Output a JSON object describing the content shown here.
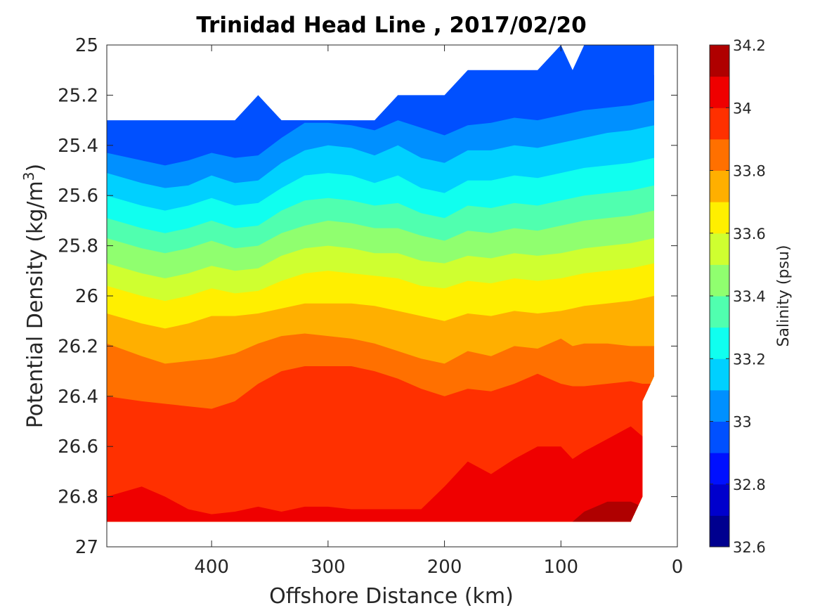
{
  "chart_data": {
    "type": "heatmap",
    "subtype": "filled-contour",
    "title": "Trinidad Head Line , 2017/02/20",
    "xlabel": "Offshore Distance (km)",
    "ylabel_main": "Potential Density (kg/m",
    "ylabel_sup": "3",
    "ylabel_close": ")",
    "xlim": [
      490,
      0
    ],
    "x_reversed": true,
    "ylim": [
      25,
      27
    ],
    "y_reversed": true,
    "xticks": [
      "400",
      "300",
      "200",
      "100",
      "0"
    ],
    "yticks": [
      "25",
      "25.2",
      "25.4",
      "25.6",
      "25.8",
      "26",
      "26.2",
      "26.4",
      "26.6",
      "26.8",
      "27"
    ],
    "grid": false,
    "colorbar": {
      "label": "Salinity (psu)",
      "range": [
        32.6,
        34.2
      ],
      "tick_labels": [
        "32.6",
        "32.8",
        "33",
        "33.2",
        "33.4",
        "33.6",
        "33.8",
        "34",
        "34.2"
      ],
      "levels": [
        32.6,
        32.7,
        32.8,
        32.9,
        33.0,
        33.1,
        33.2,
        33.3,
        33.4,
        33.5,
        33.6,
        33.7,
        33.8,
        33.9,
        34.0,
        34.1,
        34.2
      ],
      "colors": [
        "#00008f",
        "#0000cc",
        "#0010ff",
        "#0050ff",
        "#0090ff",
        "#00d0ff",
        "#10ffef",
        "#50ffaf",
        "#90ff6f",
        "#cfff30",
        "#ffef00",
        "#ffaf00",
        "#ff7000",
        "#ff3000",
        "#ef0000",
        "#af0000"
      ]
    },
    "data_region": {
      "x": [
        490,
        480,
        460,
        440,
        420,
        400,
        380,
        360,
        340,
        320,
        300,
        280,
        260,
        240,
        220,
        200,
        180,
        160,
        140,
        120,
        100,
        90,
        80,
        60,
        40,
        30,
        20
      ],
      "top": [
        25.3,
        25.3,
        25.3,
        25.3,
        25.3,
        25.3,
        25.3,
        25.2,
        25.3,
        25.3,
        25.3,
        25.3,
        25.3,
        25.2,
        25.2,
        25.2,
        25.1,
        25.1,
        25.1,
        25.1,
        25.0,
        25.1,
        25.0,
        25.0,
        25.0,
        25.0,
        25.0
      ],
      "bottom": 26.9
    },
    "isolines": {
      "x": [
        490,
        460,
        440,
        420,
        400,
        380,
        360,
        340,
        320,
        300,
        280,
        260,
        240,
        220,
        200,
        180,
        160,
        140,
        120,
        100,
        90,
        80,
        60,
        40,
        30,
        20
      ],
      "levels": [
        {
          "salinity": 32.9,
          "y": [
            25.33,
            25.36,
            25.38,
            25.37,
            25.34,
            25.34,
            25.31,
            25.29,
            25.3,
            25.3,
            25.3,
            25.31,
            25.27,
            25.26,
            25.28,
            25.25,
            25.24,
            25.22,
            25.21,
            25.19,
            25.18,
            25.17,
            25.15,
            25.14,
            25.13,
            25.12
          ]
        },
        {
          "salinity": 33.0,
          "y": [
            25.43,
            25.46,
            25.48,
            25.46,
            25.43,
            25.45,
            25.44,
            25.37,
            25.31,
            25.31,
            25.32,
            25.34,
            25.3,
            25.33,
            25.36,
            25.32,
            25.31,
            25.29,
            25.3,
            25.28,
            25.27,
            25.26,
            25.25,
            25.24,
            25.23,
            25.22
          ]
        },
        {
          "salinity": 33.1,
          "y": [
            25.51,
            25.55,
            25.57,
            25.56,
            25.52,
            25.55,
            25.54,
            25.47,
            25.42,
            25.4,
            25.41,
            25.44,
            25.4,
            25.45,
            25.47,
            25.42,
            25.42,
            25.4,
            25.41,
            25.39,
            25.38,
            25.37,
            25.35,
            25.34,
            25.33,
            25.32
          ]
        },
        {
          "salinity": 33.2,
          "y": [
            25.6,
            25.64,
            25.66,
            25.64,
            25.61,
            25.64,
            25.63,
            25.57,
            25.52,
            25.51,
            25.52,
            25.55,
            25.52,
            25.57,
            25.59,
            25.54,
            25.54,
            25.52,
            25.53,
            25.51,
            25.5,
            25.49,
            25.48,
            25.47,
            25.46,
            25.45
          ]
        },
        {
          "salinity": 33.3,
          "y": [
            25.69,
            25.73,
            25.75,
            25.73,
            25.7,
            25.73,
            25.72,
            25.66,
            25.62,
            25.61,
            25.62,
            25.64,
            25.63,
            25.67,
            25.69,
            25.64,
            25.65,
            25.63,
            25.64,
            25.62,
            25.61,
            25.6,
            25.59,
            25.58,
            25.57,
            25.56
          ]
        },
        {
          "salinity": 33.4,
          "y": [
            25.77,
            25.81,
            25.83,
            25.81,
            25.78,
            25.81,
            25.8,
            25.75,
            25.72,
            25.7,
            25.71,
            25.73,
            25.73,
            25.76,
            25.78,
            25.74,
            25.75,
            25.73,
            25.74,
            25.72,
            25.71,
            25.7,
            25.69,
            25.68,
            25.67,
            25.66
          ]
        },
        {
          "salinity": 33.5,
          "y": [
            25.87,
            25.91,
            25.93,
            25.91,
            25.88,
            25.9,
            25.89,
            25.84,
            25.81,
            25.8,
            25.81,
            25.83,
            25.83,
            25.86,
            25.87,
            25.84,
            25.85,
            25.83,
            25.84,
            25.83,
            25.82,
            25.81,
            25.8,
            25.79,
            25.78,
            25.77
          ]
        },
        {
          "salinity": 33.6,
          "y": [
            25.96,
            26.0,
            26.02,
            26.0,
            25.97,
            25.99,
            25.98,
            25.94,
            25.91,
            25.9,
            25.91,
            25.92,
            25.93,
            25.96,
            25.97,
            25.94,
            25.95,
            25.93,
            25.94,
            25.93,
            25.92,
            25.91,
            25.9,
            25.89,
            25.88,
            25.87
          ]
        },
        {
          "salinity": 33.7,
          "y": [
            26.07,
            26.11,
            26.13,
            26.11,
            26.08,
            26.08,
            26.07,
            26.05,
            26.03,
            26.03,
            26.03,
            26.04,
            26.06,
            26.08,
            26.1,
            26.07,
            26.08,
            26.06,
            26.07,
            26.06,
            26.05,
            26.04,
            26.03,
            26.02,
            26.01,
            26.0
          ]
        },
        {
          "salinity": 33.8,
          "y": [
            26.19,
            26.24,
            26.27,
            26.26,
            26.25,
            26.23,
            26.19,
            26.16,
            26.15,
            26.16,
            26.17,
            26.19,
            26.22,
            26.25,
            26.27,
            26.22,
            26.24,
            26.2,
            26.21,
            26.17,
            26.2,
            26.19,
            26.19,
            26.2,
            26.2,
            26.2
          ]
        },
        {
          "salinity": 33.9,
          "y": [
            26.4,
            26.42,
            26.43,
            26.44,
            26.45,
            26.42,
            26.35,
            26.3,
            26.28,
            26.28,
            26.28,
            26.3,
            26.33,
            26.37,
            26.4,
            26.37,
            26.38,
            26.35,
            26.31,
            26.35,
            26.36,
            26.36,
            26.35,
            26.34,
            26.35,
            26.35
          ]
        },
        {
          "salinity": 34.0,
          "y": [
            26.8,
            26.76,
            26.8,
            26.85,
            26.87,
            26.86,
            26.84,
            26.86,
            26.84,
            26.84,
            26.85,
            26.85,
            26.85,
            26.85,
            26.76,
            26.66,
            26.71,
            26.65,
            26.6,
            26.6,
            26.65,
            26.62,
            26.57,
            26.52,
            26.56,
            26.58
          ]
        },
        {
          "salinity": 34.1,
          "y": [
            26.95,
            26.95,
            26.95,
            26.95,
            26.95,
            26.95,
            26.95,
            26.95,
            26.95,
            26.95,
            26.95,
            26.95,
            26.95,
            26.95,
            26.95,
            26.95,
            26.95,
            26.95,
            26.95,
            26.95,
            26.9,
            26.86,
            26.82,
            26.82,
            26.84,
            26.86
          ]
        }
      ]
    }
  }
}
